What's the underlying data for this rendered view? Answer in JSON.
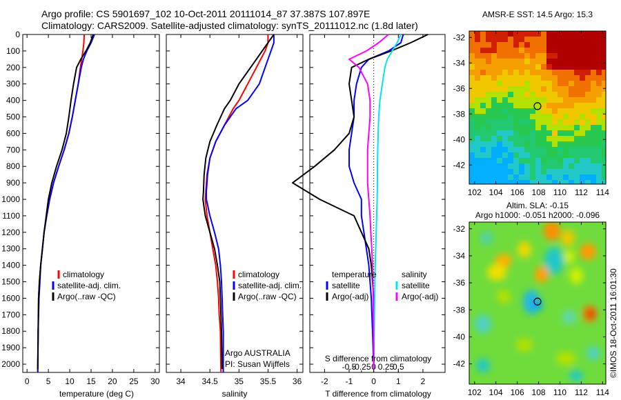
{
  "header": {
    "line1": "Argo profile: CS 5901697_102 10-Oct-2011 20111014_87 37.387S 107.897E",
    "line2": "Climatology: CARS2009. Satellite-adjusted climatology: synTS_20111012.nc (1.8d later)"
  },
  "colors": {
    "climatology": "#ff0000",
    "satellite": "#0000ff",
    "argo": "#000000",
    "sat_diff": "#00e5ee",
    "argo_sal_diff": "#ff00ff"
  },
  "chart_data": [
    {
      "type": "line",
      "xlabel": "temperature (deg C)",
      "xlim": [
        -1,
        31
      ],
      "xticks": [
        0,
        5,
        10,
        15,
        20,
        25,
        30
      ],
      "ylim": [
        0,
        2050
      ],
      "yticks": [
        0,
        100,
        200,
        300,
        400,
        500,
        600,
        700,
        800,
        900,
        1000,
        1100,
        1200,
        1300,
        1400,
        1500,
        1600,
        1700,
        1800,
        1900,
        2000
      ],
      "legend": {
        "entries": [
          "climatology",
          "satellite-adj. clim.",
          "Argo(..raw -QC)"
        ],
        "placement": "center"
      },
      "series": [
        {
          "name": "climatology",
          "color": "#ff0000",
          "x": [
            13.4,
            13.3,
            13.1,
            12.8,
            12.5,
            12.0,
            11.3,
            10.6,
            9.8,
            8.7,
            7.4,
            6.2,
            5.3,
            4.6,
            4.0,
            3.6,
            3.2,
            2.9,
            2.7,
            2.6,
            2.5
          ],
          "y": [
            0,
            50,
            100,
            150,
            200,
            300,
            400,
            500,
            600,
            700,
            800,
            900,
            1000,
            1100,
            1200,
            1300,
            1400,
            1500,
            1600,
            1800,
            2050
          ]
        },
        {
          "name": "satellite-adj. clim.",
          "color": "#0000ff",
          "x": [
            15.8,
            15.0,
            14.0,
            13.2,
            12.7,
            12.0,
            11.3,
            10.6,
            9.8,
            8.7,
            7.4,
            6.2,
            5.3,
            4.6,
            4.0,
            3.6,
            3.2,
            3.0,
            2.8,
            2.6,
            2.5
          ],
          "y": [
            0,
            50,
            100,
            150,
            200,
            300,
            400,
            500,
            600,
            700,
            800,
            900,
            1000,
            1100,
            1200,
            1300,
            1400,
            1500,
            1600,
            1800,
            2050
          ]
        },
        {
          "name": "Argo(..raw -QC)",
          "color": "#000000",
          "x": [
            15.5,
            14.8,
            13.8,
            12.6,
            11.6,
            10.9,
            10.3,
            9.8,
            9.2,
            8.2,
            6.9,
            5.8,
            5.0,
            4.5,
            4.0,
            3.6,
            3.2,
            2.9,
            2.7,
            2.6,
            2.5
          ],
          "y": [
            0,
            50,
            100,
            150,
            200,
            300,
            400,
            500,
            600,
            700,
            800,
            900,
            1000,
            1100,
            1200,
            1300,
            1400,
            1500,
            1600,
            1800,
            2030
          ]
        }
      ]
    },
    {
      "type": "line",
      "xlabel": "salinity",
      "xlim": [
        33.75,
        36.1
      ],
      "xticks": [
        34,
        34.5,
        35,
        35.5,
        36
      ],
      "ylim": [
        0,
        2050
      ],
      "legend": {
        "entries": [
          "climatology",
          "satellite-adj. clim.",
          "Argo(..raw -QC)"
        ],
        "placement": "right"
      },
      "annotation": [
        "Argo AUSTRALIA",
        "PI: Susan Wijffels"
      ],
      "series": [
        {
          "name": "climatology",
          "color": "#ff0000",
          "x": [
            35.5,
            35.5,
            35.45,
            35.3,
            35.15,
            35.0,
            34.9,
            34.75,
            34.6,
            34.5,
            34.45,
            34.43,
            34.42,
            34.45,
            34.5,
            34.55,
            34.6,
            34.63,
            34.65,
            34.66,
            34.68,
            34.69
          ],
          "y": [
            0,
            50,
            100,
            200,
            300,
            400,
            450,
            550,
            650,
            750,
            850,
            950,
            1000,
            1100,
            1200,
            1300,
            1400,
            1500,
            1600,
            1700,
            1800,
            2050
          ]
        },
        {
          "name": "satellite-adj. clim.",
          "color": "#0000ff",
          "x": [
            35.6,
            35.6,
            35.55,
            35.45,
            35.35,
            35.15,
            34.95,
            34.75,
            34.6,
            34.5,
            34.46,
            34.44,
            34.44,
            34.5,
            34.58,
            34.65,
            34.68,
            34.7,
            34.71,
            34.72,
            34.73,
            34.73
          ],
          "y": [
            0,
            50,
            100,
            200,
            300,
            400,
            450,
            550,
            650,
            750,
            850,
            950,
            1000,
            1100,
            1200,
            1300,
            1400,
            1500,
            1600,
            1700,
            1800,
            2050
          ]
        },
        {
          "name": "Argo(..raw -QC)",
          "color": "#000000",
          "x": [
            35.6,
            35.5,
            35.4,
            35.2,
            35.0,
            34.85,
            34.75,
            34.62,
            34.5,
            34.43,
            34.4,
            34.39,
            34.38,
            34.42,
            34.5,
            34.58,
            34.63,
            34.67,
            34.68,
            34.69,
            34.7,
            34.71
          ],
          "y": [
            0,
            50,
            100,
            200,
            300,
            400,
            450,
            550,
            650,
            750,
            850,
            950,
            1000,
            1100,
            1200,
            1300,
            1400,
            1500,
            1600,
            1700,
            1800,
            2030
          ]
        }
      ]
    },
    {
      "type": "line",
      "xlabel": "T difference from climatology",
      "xlabel_top": "S difference from climatology",
      "xlim": [
        -2.6,
        2.9
      ],
      "xticks": [
        -2,
        -1,
        0,
        1,
        2
      ],
      "sticks": [
        -0.5,
        -0.25,
        0,
        0.25,
        0.5
      ],
      "stick_labels": [
        "-0.5",
        "-0.25",
        "0",
        "0.25",
        "0.5"
      ],
      "legend_left": {
        "title": "temperature",
        "entries": [
          "satellite",
          "Argo(-adj)"
        ]
      },
      "legend_right": {
        "title": "salinity",
        "entries": [
          "satellite",
          "Argo(-adj)"
        ]
      },
      "ylim": [
        0,
        2050
      ],
      "series": [
        {
          "name": "temperature satellite",
          "color": "#0000ff",
          "x": [
            1.2,
            1.1,
            0.6,
            -0.2,
            -0.5,
            -0.7,
            -0.8,
            -0.8,
            -0.9,
            -1.0,
            -1.0,
            -0.8,
            -0.5,
            -0.5,
            -0.4,
            -0.3,
            -0.2,
            -0.15,
            -0.1,
            -0.05,
            0
          ],
          "y": [
            0,
            50,
            100,
            150,
            200,
            300,
            400,
            500,
            600,
            700,
            800,
            900,
            1000,
            1100,
            1200,
            1300,
            1400,
            1500,
            1600,
            1800,
            2030
          ]
        },
        {
          "name": "temperature Argo(-adj)",
          "color": "#000000",
          "x": [
            2.2,
            1.5,
            0.7,
            -0.2,
            -0.9,
            -1.0,
            -0.9,
            -0.8,
            -1.0,
            -1.6,
            -2.4,
            -3.3,
            -2.2,
            -0.8,
            -0.5,
            -0.2,
            -0.1,
            -0.05,
            0,
            0,
            0
          ],
          "y": [
            0,
            50,
            100,
            150,
            200,
            300,
            400,
            500,
            600,
            700,
            800,
            900,
            1000,
            1100,
            1200,
            1300,
            1400,
            1500,
            1600,
            1800,
            2030
          ]
        },
        {
          "name": "salinity satellite",
          "color": "#00e5ee",
          "x": [
            1.1,
            0.95,
            0.75,
            0.55,
            0.45,
            0.35,
            0.25,
            0.2,
            0.18,
            0.16,
            0.15,
            0.15,
            0.14,
            0.12,
            0.1,
            0.08,
            0.06,
            0.05,
            0.04,
            0.02,
            0
          ],
          "y": [
            0,
            50,
            100,
            150,
            200,
            300,
            400,
            500,
            600,
            700,
            800,
            900,
            1000,
            1100,
            1200,
            1300,
            1400,
            1500,
            1600,
            1800,
            2030
          ]
        },
        {
          "name": "salinity Argo(-adj)",
          "color": "#ff00ff",
          "x": [
            0.6,
            0.2,
            -0.3,
            -1.0,
            -0.6,
            -0.25,
            -0.15,
            -0.15,
            -0.2,
            -0.25,
            -0.25,
            -0.25,
            -0.2,
            -0.15,
            -0.12,
            -0.08,
            -0.05,
            -0.03,
            -0.02,
            -0.01,
            0
          ],
          "y": [
            0,
            50,
            100,
            150,
            200,
            300,
            400,
            500,
            600,
            700,
            800,
            900,
            1000,
            1100,
            1200,
            1300,
            1400,
            1500,
            1600,
            1800,
            2030
          ]
        }
      ]
    },
    {
      "type": "heatmap",
      "title": "AMSR-E SST: 14.5 Argo: 15.3",
      "xlim": [
        101.5,
        114.3
      ],
      "ylim": [
        -43.5,
        -31.5
      ],
      "xticks": [
        102,
        104,
        106,
        108,
        110,
        112,
        114
      ],
      "yticks": [
        -32,
        -34,
        -36,
        -38,
        -40,
        -42
      ],
      "marker": {
        "lon": 107.897,
        "lat": -37.387
      },
      "colors": [
        "#00b0ff",
        "#22c8c8",
        "#22c870",
        "#28c850",
        "#b4e000",
        "#f0c800",
        "#f5a000",
        "#f07000",
        "#d02000",
        "#b00000"
      ]
    },
    {
      "type": "heatmap",
      "title_line1": "Altim. SLA: -0.15",
      "title_line2": "Argo h1000: -0.051 h2000: -0.096",
      "xlim": [
        101.5,
        114.3
      ],
      "ylim": [
        -43.5,
        -31.5
      ],
      "xticks": [
        102,
        104,
        106,
        108,
        110,
        112,
        114
      ],
      "yticks": [
        -32,
        -34,
        -36,
        -38,
        -40,
        -42
      ],
      "marker": {
        "lon": 107.897,
        "lat": -37.387
      }
    }
  ],
  "footer_stamp": "©IMOS 18-Oct-2011 16:01:30"
}
